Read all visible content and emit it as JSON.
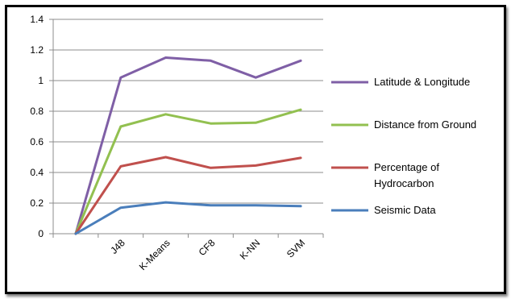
{
  "chart_data": {
    "type": "line",
    "categories": [
      "",
      "J48",
      "K-Means",
      "CF8",
      "K-NN",
      "SVM"
    ],
    "series": [
      {
        "name": "Latitude & Longitude",
        "color": "#7F5FA6",
        "values": [
          0,
          1.02,
          1.15,
          1.13,
          1.02,
          1.13
        ]
      },
      {
        "name": "Distance from Ground",
        "color": "#92C050",
        "values": [
          0,
          0.7,
          0.78,
          0.72,
          0.725,
          0.81
        ]
      },
      {
        "name": "Percentage of Hydrocarbon",
        "color": "#C0504D",
        "values": [
          0,
          0.44,
          0.5,
          0.43,
          0.445,
          0.495
        ]
      },
      {
        "name": "Seismic Data",
        "color": "#4A7EBB",
        "values": [
          0,
          0.17,
          0.205,
          0.185,
          0.185,
          0.18
        ]
      }
    ],
    "legend_lines": [
      [
        "Latitude & Longitude"
      ],
      [
        "Distance from Ground"
      ],
      [
        "Percentage of",
        "Hydrocarbon"
      ],
      [
        "Seismic Data"
      ]
    ],
    "yticks": [
      "0",
      "0.2",
      "0.4",
      "0.6",
      "0.8",
      "1",
      "1.2",
      "1.4"
    ],
    "ylim": [
      0,
      1.4
    ],
    "grid": true,
    "legend_position": "right",
    "title": "",
    "xlabel": "",
    "ylabel": ""
  }
}
